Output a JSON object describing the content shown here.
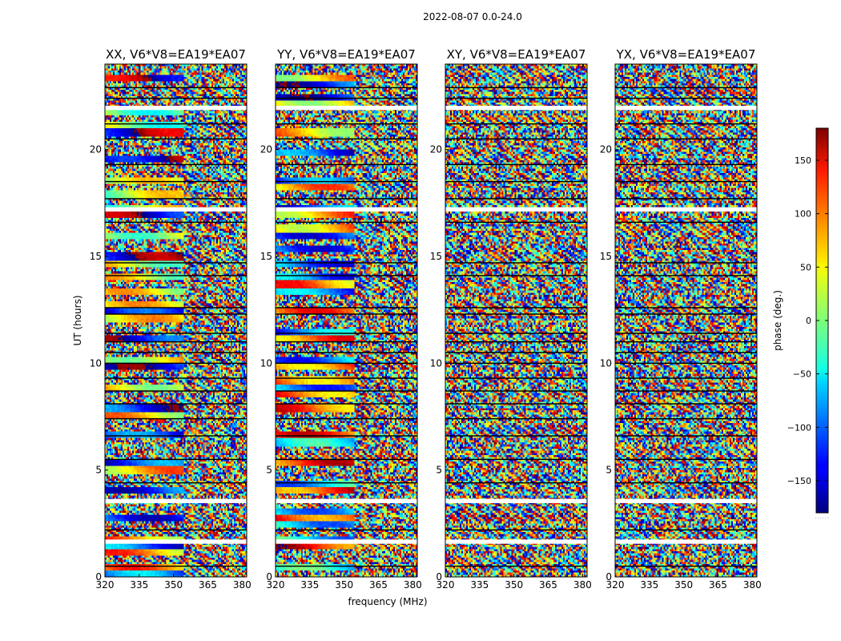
{
  "figure_title": "2022-08-07 0.0-24.0",
  "chart_data": {
    "type": "heatmap",
    "title": "2022-08-07 0.0-24.0",
    "xlabel": "frequency (MHz)",
    "ylabel": "UT (hours)",
    "xlim": [
      320,
      382
    ],
    "ylim": [
      0,
      24
    ],
    "xticks": [
      320,
      335,
      350,
      365,
      380
    ],
    "yticks": [
      0,
      5,
      10,
      15,
      20
    ],
    "panels": [
      {
        "title": "XX, V6*V8=EA19*EA07",
        "polarization": "XX"
      },
      {
        "title": "YY, V6*V8=EA19*EA07",
        "polarization": "YY"
      },
      {
        "title": "XY, V6*V8=EA19*EA07",
        "polarization": "XY"
      },
      {
        "title": "YX, V6*V8=EA19*EA07",
        "polarization": "YX"
      }
    ],
    "colorbar": {
      "label": "phase (deg.)",
      "range": [
        -180,
        180
      ],
      "ticks": [
        -150,
        -100,
        -50,
        0,
        50,
        100,
        150
      ],
      "tick_labels": [
        "−150",
        "−100",
        "−50",
        "0",
        "50",
        "100",
        "150"
      ],
      "colormap": "jet"
    },
    "gap_bands_ut": [
      [
        1.55,
        1.75
      ],
      [
        3.45,
        3.65
      ],
      [
        17.1,
        17.3
      ],
      [
        21.85,
        22.05
      ]
    ],
    "black_lines_ut": [
      0.5,
      2.2,
      4.4,
      5.5,
      6.6,
      7.4,
      8.1,
      8.7,
      9.3,
      10.0,
      10.5,
      11.0,
      11.4,
      12.3,
      12.6,
      14.1,
      14.7,
      16.6,
      17.7,
      18.5,
      19.3,
      20.5,
      21.2,
      22.4,
      22.9
    ]
  },
  "colors": {
    "axes": "#000000",
    "gap": "#ffffff"
  }
}
